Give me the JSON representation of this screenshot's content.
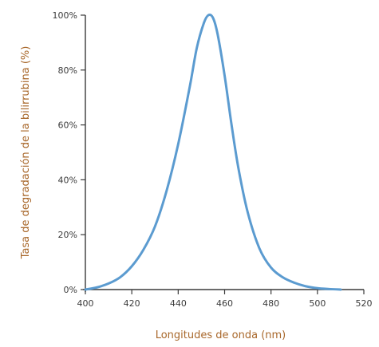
{
  "chart_data": {
    "type": "line",
    "title": "",
    "xlabel": "Longitudes de onda (nm)",
    "ylabel": "Tasa de degradación de la bilirrubina (%)",
    "xlim": [
      400,
      520
    ],
    "ylim": [
      0,
      100
    ],
    "x_ticks": [
      400,
      420,
      440,
      460,
      480,
      500,
      520
    ],
    "y_ticks": [
      0,
      20,
      40,
      60,
      80,
      100
    ],
    "x_tick_labels": [
      "400",
      "420",
      "440",
      "460",
      "480",
      "500",
      "520"
    ],
    "y_tick_labels": [
      "0%",
      "20%",
      "40%",
      "60%",
      "80%",
      "100%"
    ],
    "grid": false,
    "legend": "none",
    "series": [
      {
        "color": "#5b9bd0",
        "x": [
          400,
          405,
          410,
          415,
          420,
          425,
          430,
          435,
          440,
          445,
          448,
          451,
          453,
          455,
          457,
          460,
          463,
          466,
          470,
          475,
          480,
          485,
          490,
          495,
          500,
          505,
          510
        ],
        "y": [
          0,
          0.8,
          2.2,
          4.5,
          8.5,
          14.5,
          23,
          36,
          53,
          74,
          88,
          97,
          100,
          99,
          93,
          78,
          60,
          44,
          28,
          15,
          8,
          4.5,
          2.5,
          1.2,
          0.5,
          0.2,
          0
        ]
      }
    ]
  }
}
